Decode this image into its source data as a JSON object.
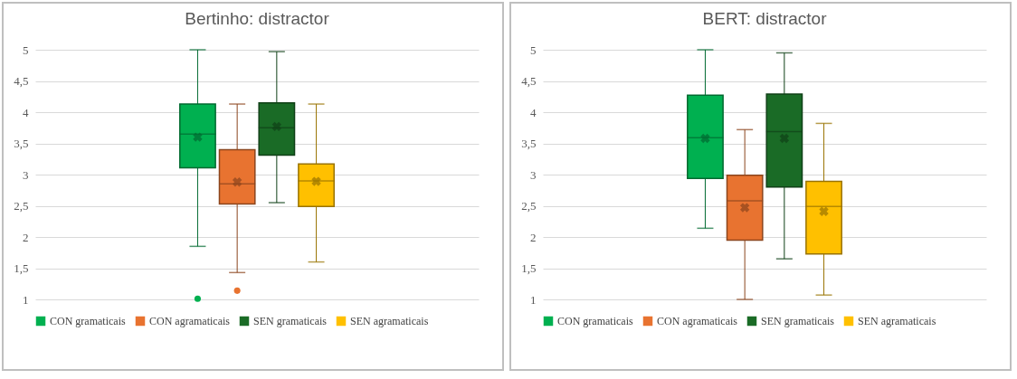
{
  "chart_data": [
    {
      "type": "box",
      "title": "Bertinho: distractor",
      "categories": [
        null
      ],
      "ylim": [
        1,
        5
      ],
      "yticks": [
        1,
        {
          "value": 1.5,
          "label": "1,5"
        },
        2,
        {
          "value": 2.5,
          "label": "2,5"
        },
        3,
        {
          "value": 3.5,
          "label": "3,5"
        },
        4,
        {
          "value": 4.5,
          "label": "4,5"
        },
        5
      ],
      "grid": "y",
      "legend": "bottom",
      "tick_labels": "y",
      "series": [
        {
          "name": "CON gramaticais",
          "color": "#00b050",
          "boxes": [
            {
              "low": 1.85,
              "q1": 3.11,
              "median": 3.65,
              "q3": 4.13,
              "high": 5,
              "mean": 3.6,
              "outliers": [
                1.01
              ]
            }
          ]
        },
        {
          "name": "CON agramaticais",
          "color": "#e87330",
          "boxes": [
            {
              "low": 1.43,
              "q1": 2.53,
              "median": 2.85,
              "q3": 3.4,
              "high": 4.13,
              "mean": 2.88,
              "outliers": [
                1.14
              ]
            }
          ]
        },
        {
          "name": "SEN gramaticais",
          "color": "#1a6b26",
          "boxes": [
            {
              "low": 2.55,
              "q1": 3.31,
              "median": 3.75,
              "q3": 4.15,
              "high": 4.97,
              "mean": 3.77
            }
          ]
        },
        {
          "name": "SEN agramaticais",
          "color": "#ffc000",
          "boxes": [
            {
              "low": 1.6,
              "q1": 2.49,
              "median": 2.9,
              "q3": 3.17,
              "high": 4.13,
              "mean": 2.89
            }
          ]
        }
      ]
    },
    {
      "type": "box",
      "title": "BERT: distractor",
      "categories": [
        null
      ],
      "ylim": [
        1,
        5
      ],
      "yticks": [
        1,
        {
          "value": 1.5,
          "label": "1,5"
        },
        2,
        {
          "value": 2.5,
          "label": "2,5"
        },
        3,
        {
          "value": 3.5,
          "label": "3,5"
        },
        4,
        {
          "value": 4.5,
          "label": "4,5"
        },
        5
      ],
      "grid": "y",
      "legend": "bottom",
      "tick_labels": "y",
      "series": [
        {
          "name": "CON gramaticais",
          "color": "#00b050",
          "boxes": [
            {
              "low": 2.14,
              "q1": 2.94,
              "median": 3.59,
              "q3": 4.27,
              "high": 5,
              "mean": 3.58
            }
          ]
        },
        {
          "name": "CON agramaticais",
          "color": "#e87330",
          "boxes": [
            {
              "low": 1,
              "q1": 1.95,
              "median": 2.58,
              "q3": 2.99,
              "high": 3.72,
              "mean": 2.47
            }
          ]
        },
        {
          "name": "SEN gramaticais",
          "color": "#1a6b26",
          "boxes": [
            {
              "low": 1.65,
              "q1": 2.8,
              "median": 3.69,
              "q3": 4.29,
              "high": 4.95,
              "mean": 3.58
            }
          ]
        },
        {
          "name": "SEN agramaticais",
          "color": "#ffc000",
          "boxes": [
            {
              "low": 1.07,
              "q1": 1.73,
              "median": 2.49,
              "q3": 2.89,
              "high": 3.82,
              "mean": 2.41
            }
          ]
        }
      ]
    }
  ]
}
